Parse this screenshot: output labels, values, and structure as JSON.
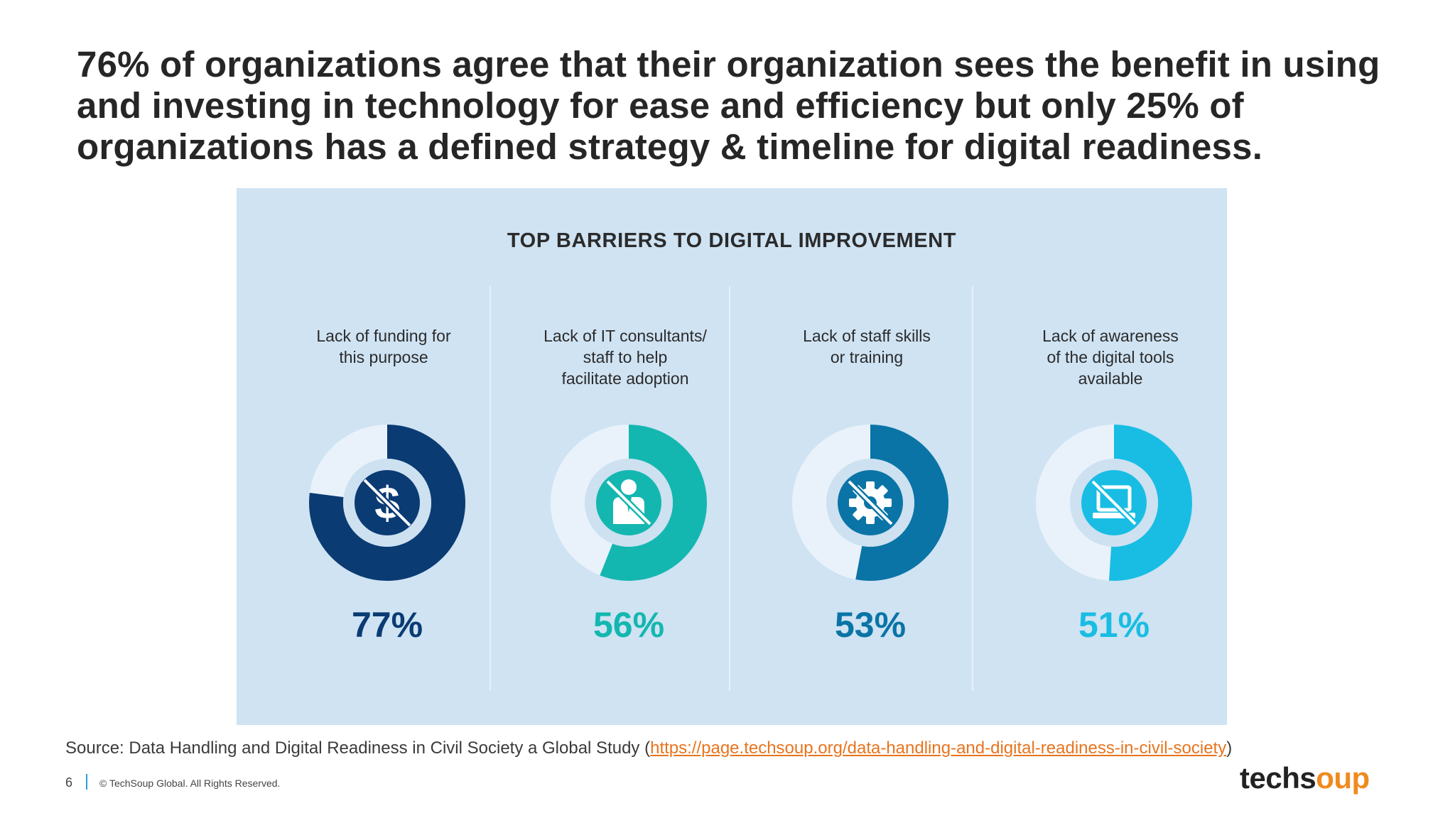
{
  "slide": {
    "title": "76% of organizations agree that their organization sees the benefit in using and investing in technology for ease and efficiency but only 25% of organizations has a defined strategy & timeline for digital readiness."
  },
  "chart_data": {
    "type": "donut",
    "title": "TOP BARRIERS TO DIGITAL IMPROVEMENT",
    "categories": [
      "Lack of funding for\nthis purpose",
      "Lack of IT consultants/\nstaff to help\nfacilitate adoption",
      "Lack of staff skills\nor training",
      "Lack of awareness\nof the digital tools\navailable"
    ],
    "values": [
      77,
      56,
      53,
      51
    ],
    "labels": [
      "77%",
      "56%",
      "53%",
      "51%"
    ],
    "icons": [
      "no-dollar-icon",
      "no-person-icon",
      "no-gear-icon",
      "no-computer-icon"
    ],
    "colors": [
      "#0b3b73",
      "#14b7b0",
      "#0a74a6",
      "#19bde3"
    ],
    "track_color": "#e9f2fa",
    "inner_ring_color": "#cde1f1"
  },
  "source": {
    "prefix": "Source: Data Handling and Digital Readiness in Civil Society a Global Study (",
    "link": "https://page.techsoup.org/data-handling-and-digital-readiness-in-civil-society",
    "suffix": ")"
  },
  "footer": {
    "page_number": "6",
    "copyright": "© TechSoup Global. All Rights Reserved.",
    "logo_part1": "techs",
    "logo_part2": "oup"
  }
}
